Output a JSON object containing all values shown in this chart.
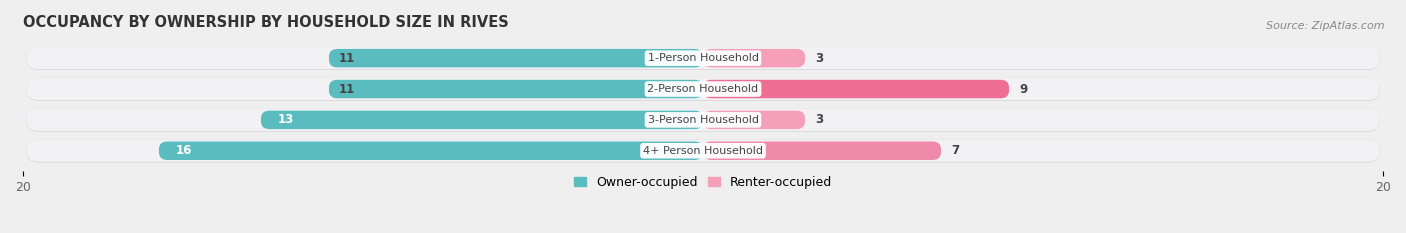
{
  "title": "OCCUPANCY BY OWNERSHIP BY HOUSEHOLD SIZE IN RIVES",
  "source": "Source: ZipAtlas.com",
  "categories": [
    "1-Person Household",
    "2-Person Household",
    "3-Person Household",
    "4+ Person Household"
  ],
  "owner_values": [
    11,
    11,
    13,
    16
  ],
  "renter_values": [
    3,
    9,
    3,
    7
  ],
  "owner_color": "#5bbcbf",
  "renter_color_light": "#f5a0b8",
  "renter_color_dark": "#ee6f93",
  "renter_colors": [
    "#f5a0b8",
    "#ee6f93",
    "#f5a0b8",
    "#f08aab"
  ],
  "axis_max": 20,
  "axis_min": -20,
  "background_color": "#efefef",
  "row_bg_color": "#e0e0e4",
  "row_shadow_color": "#d0d0d5",
  "label_bg_color": "#ffffff",
  "title_fontsize": 10.5,
  "source_fontsize": 8,
  "tick_fontsize": 9,
  "legend_fontsize": 9,
  "bar_label_fontsize": 8.5,
  "category_fontsize": 8
}
